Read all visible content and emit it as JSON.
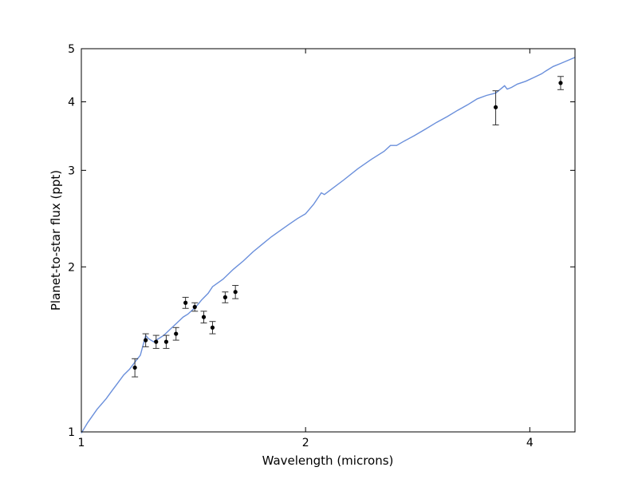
{
  "chart_data": {
    "type": "scatter",
    "xlabel": "Wavelength (microns)",
    "ylabel": "Planet-to-star flux (ppt)",
    "x_scale": "log",
    "y_scale": "log",
    "xlim": [
      1.0,
      4.6
    ],
    "ylim": [
      1.0,
      5.0
    ],
    "x_ticks": [
      {
        "value": 1,
        "label": "1"
      },
      {
        "value": 2,
        "label": "2"
      },
      {
        "value": 4,
        "label": "4"
      }
    ],
    "y_ticks": [
      {
        "value": 1,
        "label": "1"
      },
      {
        "value": 2,
        "label": "2"
      },
      {
        "value": 3,
        "label": "3"
      },
      {
        "value": 4,
        "label": "4"
      },
      {
        "value": 5,
        "label": "5"
      }
    ],
    "grid": false,
    "colors": {
      "model": "#6a8fdb",
      "points": "#000000",
      "errorbars": "#333333"
    },
    "series": [
      {
        "type": "line",
        "x": [
          1.0,
          1.02,
          1.05,
          1.08,
          1.1,
          1.12,
          1.14,
          1.16,
          1.18,
          1.2,
          1.22,
          1.23,
          1.25,
          1.27,
          1.29,
          1.31,
          1.33,
          1.35,
          1.37,
          1.39,
          1.41,
          1.43,
          1.45,
          1.48,
          1.5,
          1.55,
          1.6,
          1.65,
          1.7,
          1.75,
          1.8,
          1.85,
          1.9,
          1.95,
          2.0,
          2.05,
          2.1,
          2.12,
          2.15,
          2.25,
          2.35,
          2.45,
          2.55,
          2.6,
          2.65,
          2.7,
          2.8,
          2.9,
          3.0,
          3.1,
          3.2,
          3.3,
          3.4,
          3.5,
          3.6,
          3.7,
          3.73,
          3.78,
          3.85,
          3.95,
          4.05,
          4.15,
          4.2,
          4.3,
          4.4,
          4.6
        ],
        "y": [
          0.995,
          1.04,
          1.1,
          1.15,
          1.19,
          1.23,
          1.27,
          1.3,
          1.34,
          1.38,
          1.5,
          1.48,
          1.46,
          1.48,
          1.5,
          1.53,
          1.56,
          1.59,
          1.62,
          1.64,
          1.67,
          1.7,
          1.74,
          1.79,
          1.84,
          1.9,
          1.98,
          2.05,
          2.13,
          2.2,
          2.27,
          2.33,
          2.39,
          2.45,
          2.5,
          2.6,
          2.73,
          2.71,
          2.75,
          2.88,
          3.02,
          3.14,
          3.25,
          3.33,
          3.33,
          3.38,
          3.47,
          3.57,
          3.67,
          3.76,
          3.86,
          3.95,
          4.05,
          4.11,
          4.15,
          4.28,
          4.22,
          4.25,
          4.31,
          4.36,
          4.43,
          4.5,
          4.55,
          4.64,
          4.7,
          4.82
        ]
      },
      {
        "type": "errorbar",
        "x": [
          1.18,
          1.22,
          1.26,
          1.3,
          1.34,
          1.38,
          1.42,
          1.46,
          1.5,
          1.56,
          1.61
        ],
        "y": [
          1.31,
          1.47,
          1.46,
          1.46,
          1.51,
          1.72,
          1.69,
          1.62,
          1.55,
          1.76,
          1.8
        ],
        "yerr": [
          0.05,
          0.04,
          0.04,
          0.04,
          0.04,
          0.04,
          0.03,
          0.04,
          0.04,
          0.04,
          0.05
        ]
      },
      {
        "type": "errorbar",
        "x": [
          3.6,
          4.4
        ],
        "y": [
          3.91,
          4.33
        ],
        "yerr": [
          0.28,
          0.12
        ]
      }
    ]
  }
}
